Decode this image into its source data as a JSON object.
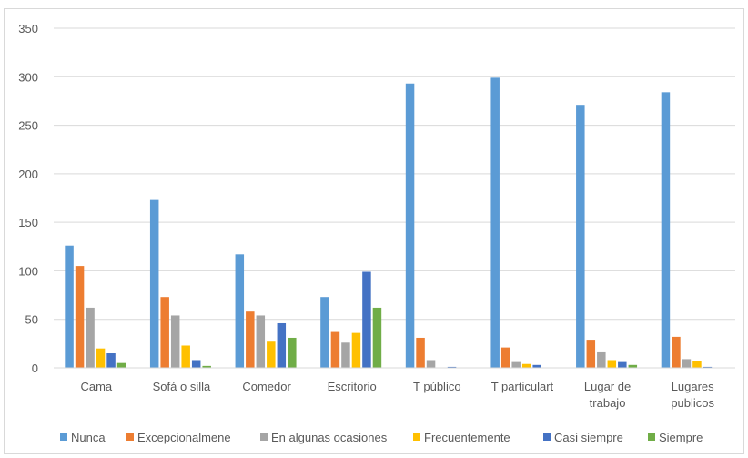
{
  "chart_data": {
    "type": "bar",
    "title": "",
    "xlabel": "",
    "ylabel": "",
    "ylim": [
      0,
      350
    ],
    "yticks": [
      0,
      50,
      100,
      150,
      200,
      250,
      300,
      350
    ],
    "grid": "horizontal",
    "legend_position": "bottom",
    "categories": [
      [
        "Cama"
      ],
      [
        "Sofá o silla"
      ],
      [
        "Comedor"
      ],
      [
        "Escritorio"
      ],
      [
        "T público"
      ],
      [
        "T particulart"
      ],
      [
        "Lugar de",
        "trabajo"
      ],
      [
        "Lugares",
        "publicos"
      ]
    ],
    "series": [
      {
        "name": "Nunca",
        "color": "#5B9BD5",
        "values": [
          126,
          173,
          117,
          73,
          293,
          299,
          271,
          284
        ]
      },
      {
        "name": "Excepcionalmene",
        "color": "#ED7D31",
        "values": [
          105,
          73,
          58,
          37,
          31,
          21,
          29,
          32
        ]
      },
      {
        "name": "En algunas ocasiones",
        "color": "#A5A5A5",
        "values": [
          62,
          54,
          54,
          26,
          8,
          6,
          16,
          9
        ]
      },
      {
        "name": "Frecuentemente",
        "color": "#FFC000",
        "values": [
          20,
          23,
          27,
          36,
          0,
          4,
          8,
          7
        ]
      },
      {
        "name": "Casi siempre",
        "color": "#4472C4",
        "values": [
          15,
          8,
          46,
          99,
          1,
          3,
          6,
          1
        ]
      },
      {
        "name": "Siempre",
        "color": "#70AD47",
        "values": [
          5,
          2,
          31,
          62,
          0,
          0,
          3,
          0
        ]
      }
    ]
  }
}
